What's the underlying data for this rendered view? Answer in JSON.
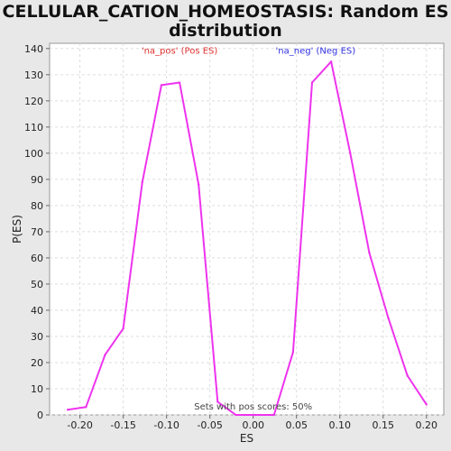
{
  "chart_data": {
    "type": "line",
    "title_line1": "CELLULAR_CATION_HOMEOSTASIS: Random ES",
    "title_line2": "distribution",
    "xlabel": "ES",
    "ylabel": "P(ES)",
    "xlim": [
      -0.235,
      0.22
    ],
    "ylim": [
      0,
      142
    ],
    "x_ticks": [
      "-0.20",
      "-0.15",
      "-0.10",
      "-0.05",
      "0.00",
      "0.05",
      "0.10",
      "0.15",
      "0.20"
    ],
    "x_tick_values": [
      -0.2,
      -0.15,
      -0.1,
      -0.05,
      0.0,
      0.05,
      0.1,
      0.15,
      0.2
    ],
    "y_ticks": [
      "0",
      "10",
      "20",
      "30",
      "40",
      "50",
      "60",
      "70",
      "80",
      "90",
      "100",
      "110",
      "120",
      "130",
      "140"
    ],
    "y_tick_values": [
      0,
      10,
      20,
      30,
      40,
      50,
      60,
      70,
      80,
      90,
      100,
      110,
      120,
      130,
      140
    ],
    "grid": true,
    "line_color": "#ee33ee",
    "series": [
      {
        "x": [
          -0.214,
          -0.193,
          -0.171,
          -0.15,
          -0.128,
          -0.106,
          -0.085,
          -0.063,
          -0.041,
          -0.02,
          0.002,
          0.024,
          0.046,
          0.068,
          0.09,
          0.112,
          0.134,
          0.156,
          0.178,
          0.2
        ],
        "y": [
          2,
          3,
          23,
          33,
          89,
          126,
          127,
          88,
          5,
          0,
          0,
          0,
          24,
          127,
          135,
          100,
          62,
          37,
          15,
          4
        ]
      }
    ],
    "annotations": [
      {
        "text": "'na_pos' (Pos ES)",
        "x": -0.085,
        "y": 138,
        "color": "#e03030"
      },
      {
        "text": "'na_neg' (Neg ES)",
        "x": 0.072,
        "y": 138,
        "color": "#3030e0"
      },
      {
        "text": "Sets with pos scores: 50%",
        "x": 0.0,
        "y": 2,
        "color": "#444444"
      }
    ]
  }
}
